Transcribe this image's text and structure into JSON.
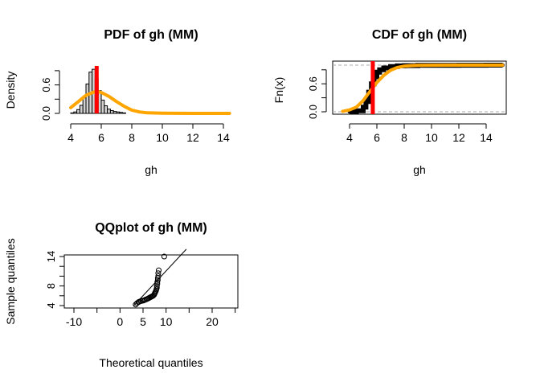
{
  "chart_data": [
    {
      "type": "histogram",
      "title": "PDF of gh (MM)",
      "xlabel": "gh",
      "ylabel": "Density",
      "xlim": [
        3.8,
        14.6
      ],
      "ylim": [
        0,
        1.0
      ],
      "xticks": [
        4,
        6,
        8,
        10,
        12,
        14
      ],
      "yticks": [
        0.0,
        0.6
      ],
      "yticks_secondary": [
        0.3,
        0.9
      ],
      "ytick_labels": [
        "0.0",
        "0.6"
      ],
      "bins": [
        {
          "x0": 4.0,
          "x1": 4.2,
          "density": 0.01
        },
        {
          "x0": 4.2,
          "x1": 4.4,
          "density": 0.03
        },
        {
          "x0": 4.4,
          "x1": 4.6,
          "density": 0.08
        },
        {
          "x0": 4.6,
          "x1": 4.8,
          "density": 0.17
        },
        {
          "x0": 4.8,
          "x1": 5.0,
          "density": 0.33
        },
        {
          "x0": 5.0,
          "x1": 5.2,
          "density": 0.62
        },
        {
          "x0": 5.2,
          "x1": 5.4,
          "density": 0.87
        },
        {
          "x0": 5.4,
          "x1": 5.6,
          "density": 0.93
        },
        {
          "x0": 5.6,
          "x1": 5.8,
          "density": 0.72
        },
        {
          "x0": 5.8,
          "x1": 6.0,
          "density": 0.48
        },
        {
          "x0": 6.0,
          "x1": 6.2,
          "density": 0.28
        },
        {
          "x0": 6.2,
          "x1": 6.4,
          "density": 0.16
        },
        {
          "x0": 6.4,
          "x1": 6.6,
          "density": 0.09
        },
        {
          "x0": 6.6,
          "x1": 6.8,
          "density": 0.06
        },
        {
          "x0": 6.8,
          "x1": 7.0,
          "density": 0.04
        },
        {
          "x0": 7.0,
          "x1": 7.2,
          "density": 0.03
        },
        {
          "x0": 7.2,
          "x1": 7.4,
          "density": 0.02
        },
        {
          "x0": 7.4,
          "x1": 7.6,
          "density": 0.01
        }
      ],
      "fitted_density": {
        "color": "#FFA500",
        "x": [
          4.0,
          4.5,
          5.0,
          5.5,
          5.8,
          6.0,
          6.5,
          7.0,
          7.5,
          8.0,
          8.5,
          9.0,
          10.0,
          12.0,
          14.4
        ],
        "y": [
          0.12,
          0.25,
          0.38,
          0.45,
          0.46,
          0.44,
          0.36,
          0.25,
          0.15,
          0.07,
          0.03,
          0.012,
          0.003,
          0.0,
          0.0
        ]
      },
      "vline": {
        "x": 5.7,
        "color": "#FF0000"
      }
    },
    {
      "type": "line",
      "title": "CDF of gh (MM)",
      "xlabel": "gh",
      "ylabel": "Fn(x)",
      "xlim": [
        3.0,
        15.4
      ],
      "ylim": [
        0,
        1.0
      ],
      "xticks": [
        4,
        6,
        8,
        10,
        12,
        14
      ],
      "yticks": [
        0.0,
        0.6
      ],
      "yticks_secondary": [
        0.3,
        0.9
      ],
      "ytick_labels": [
        "0.0",
        "0.6"
      ],
      "hlines": [
        0,
        1
      ],
      "empirical": {
        "color": "#000000",
        "x": [
          4.0,
          4.5,
          5.0,
          5.2,
          5.4,
          5.6,
          5.8,
          6.0,
          6.2,
          6.5,
          7.0,
          7.5,
          8.0,
          9.0,
          10.0,
          12.0,
          14.0,
          15.2
        ],
        "y": [
          0.005,
          0.02,
          0.1,
          0.22,
          0.42,
          0.6,
          0.75,
          0.85,
          0.9,
          0.94,
          0.97,
          0.985,
          0.99,
          0.995,
          0.997,
          0.999,
          0.9995,
          1.0
        ]
      },
      "fitted_cdf": {
        "color": "#FFA500",
        "x": [
          3.5,
          4.0,
          4.5,
          5.0,
          5.5,
          6.0,
          6.5,
          7.0,
          7.5,
          8.0,
          8.5,
          9.0,
          10.0,
          12.0,
          15.2
        ],
        "y": [
          0.01,
          0.04,
          0.1,
          0.24,
          0.44,
          0.63,
          0.78,
          0.89,
          0.95,
          0.98,
          0.99,
          0.996,
          0.999,
          1.0,
          1.0
        ]
      },
      "vline": {
        "x": 5.7,
        "color": "#FF0000"
      }
    },
    {
      "type": "scatter",
      "title": "QQplot of gh (MM)",
      "xlabel": "Theoretical quantiles",
      "ylabel": "Sample quantiles",
      "xlim": [
        -13,
        25
      ],
      "ylim": [
        3.5,
        15.5
      ],
      "xticks": [
        -10,
        0,
        5,
        10,
        20
      ],
      "xticks_minor": [
        -5,
        15,
        25
      ],
      "yticks": [
        4,
        8,
        14
      ],
      "yticks_minor": [
        6,
        10,
        12
      ],
      "reference_line": {
        "x0": 3.0,
        "y0": 4.0,
        "x1": 14.4,
        "y1": 15.5
      },
      "points": {
        "x": [
          3.4,
          3.7,
          4.0,
          4.2,
          4.5,
          4.8,
          5.0,
          5.3,
          5.5,
          5.8,
          6.0,
          6.2,
          6.4,
          6.6,
          6.8,
          7.0,
          7.2,
          7.4,
          7.5,
          7.6,
          7.7,
          7.8,
          7.9,
          8.0,
          8.0,
          8.1,
          8.1,
          8.2,
          8.2,
          8.3,
          8.3,
          8.4,
          9.6
        ],
        "y": [
          4.2,
          4.5,
          4.7,
          4.8,
          4.9,
          5.0,
          5.0,
          5.1,
          5.2,
          5.3,
          5.4,
          5.5,
          5.6,
          5.7,
          5.8,
          5.9,
          6.0,
          6.2,
          6.4,
          6.6,
          6.8,
          7.0,
          7.3,
          7.6,
          8.0,
          8.4,
          8.8,
          9.2,
          9.6,
          10.0,
          10.6,
          11.2,
          14.0
        ]
      }
    }
  ]
}
